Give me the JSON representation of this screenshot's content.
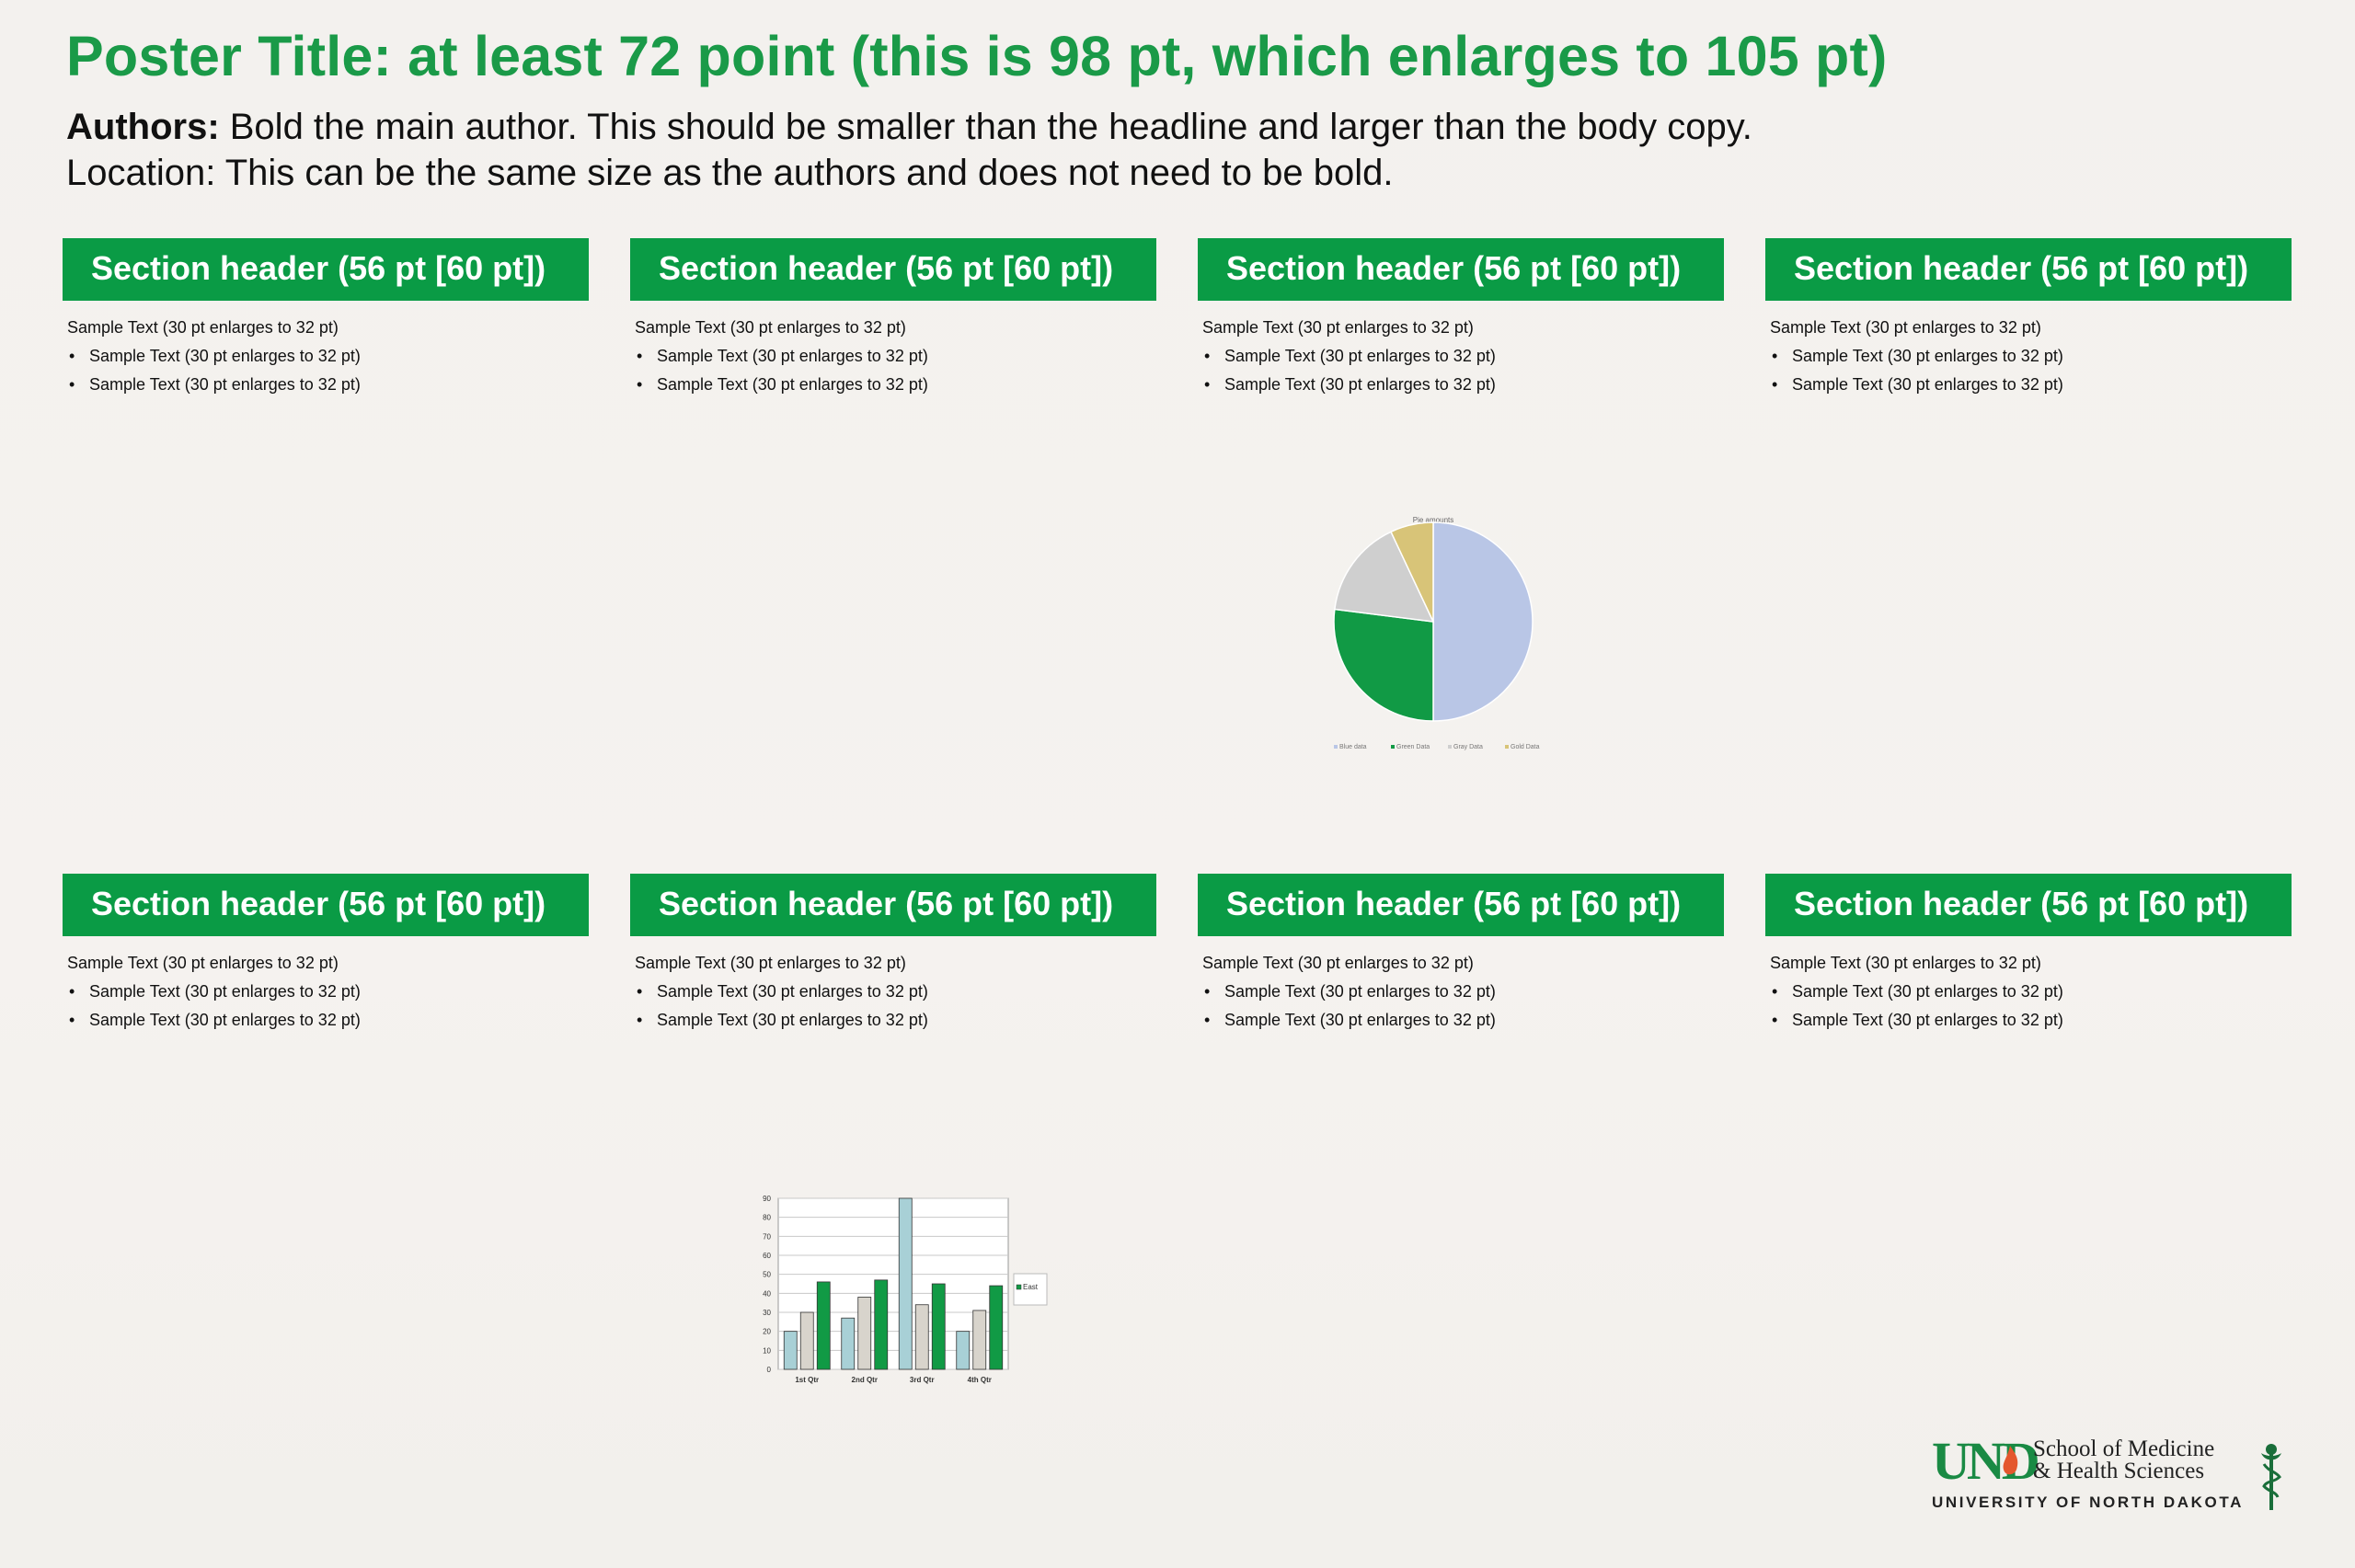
{
  "header": {
    "title": "Poster Title: at least 72 point (this is 98 pt, which enlarges to 105 pt)",
    "authors_label": "Authors:",
    "authors_text": " Bold the main author. This should be smaller than the headline and larger than the body copy.",
    "location": "Location: This can be the same size as the authors and does not need to be bold."
  },
  "sections": [
    {
      "header": "Section header (56 pt [60 pt])",
      "text": "Sample Text (30 pt enlarges to 32 pt)",
      "bullets": [
        "Sample Text (30 pt enlarges to 32 pt)",
        "Sample Text (30 pt enlarges to 32 pt)"
      ]
    },
    {
      "header": "Section header (56 pt [60 pt])",
      "text": "Sample Text (30 pt enlarges to 32 pt)",
      "bullets": [
        "Sample Text (30 pt enlarges to 32 pt)",
        "Sample Text (30 pt enlarges to 32 pt)"
      ]
    },
    {
      "header": "Section header (56 pt [60 pt])",
      "text": "Sample Text (30 pt enlarges to 32 pt)",
      "bullets": [
        "Sample Text (30 pt enlarges to 32 pt)",
        "Sample Text (30 pt enlarges to 32 pt)"
      ]
    },
    {
      "header": "Section header (56 pt [60 pt])",
      "text": "Sample Text (30 pt enlarges to 32 pt)",
      "bullets": [
        "Sample Text (30 pt enlarges to 32 pt)",
        "Sample Text (30 pt enlarges to 32 pt)"
      ]
    },
    {
      "header": "Section header (56 pt [60 pt])",
      "text": "Sample Text (30 pt enlarges to 32 pt)",
      "bullets": [
        "Sample Text (30 pt enlarges to 32 pt)",
        "Sample Text (30 pt enlarges to 32 pt)"
      ]
    },
    {
      "header": "Section header (56 pt [60 pt])",
      "text": "Sample Text (30 pt enlarges to 32 pt)",
      "bullets": [
        "Sample Text (30 pt enlarges to 32 pt)",
        "Sample Text (30 pt enlarges to 32 pt)"
      ]
    },
    {
      "header": "Section header (56 pt [60 pt])",
      "text": "Sample Text (30 pt enlarges to 32 pt)",
      "bullets": [
        "Sample Text (30 pt enlarges to 32 pt)",
        "Sample Text (30 pt enlarges to 32 pt)"
      ]
    },
    {
      "header": "Section header (56 pt [60 pt])",
      "text": "Sample Text (30 pt enlarges to 32 pt)",
      "bullets": [
        "Sample Text (30 pt enlarges to 32 pt)",
        "Sample Text (30 pt enlarges to 32 pt)"
      ]
    }
  ],
  "chart_data": [
    {
      "type": "pie",
      "title": "Pie amounts",
      "categories": [
        "Blue data",
        "Green Data",
        "Gray Data",
        "Gold Data"
      ],
      "values": [
        50,
        27,
        16,
        7
      ],
      "colors": [
        "#b9c6e6",
        "#119a45",
        "#cfcfcf",
        "#d8c478"
      ],
      "legend_position": "bottom"
    },
    {
      "type": "bar",
      "categories": [
        "1st Qtr",
        "2nd Qtr",
        "3rd Qtr",
        "4th Qtr"
      ],
      "series": [
        {
          "name": "",
          "values": [
            20,
            27,
            90,
            20
          ],
          "color": "#a8d0d6"
        },
        {
          "name": "",
          "values": [
            30,
            38,
            34,
            31
          ],
          "color": "#d8d4cc"
        },
        {
          "name": "East",
          "values": [
            46,
            47,
            45,
            44
          ],
          "color": "#119a45"
        }
      ],
      "ylim": [
        0,
        90
      ],
      "yticks": [
        0,
        10,
        20,
        30,
        40,
        50,
        60,
        70,
        80,
        90
      ],
      "grid": true,
      "legend_position": "right"
    }
  ],
  "logo": {
    "und": "UND",
    "school_line1": "School of Medicine",
    "school_line2": "& Health Sciences",
    "university": "UNIVERSITY OF NORTH DAKOTA",
    "brand_color": "#1a8a44"
  }
}
